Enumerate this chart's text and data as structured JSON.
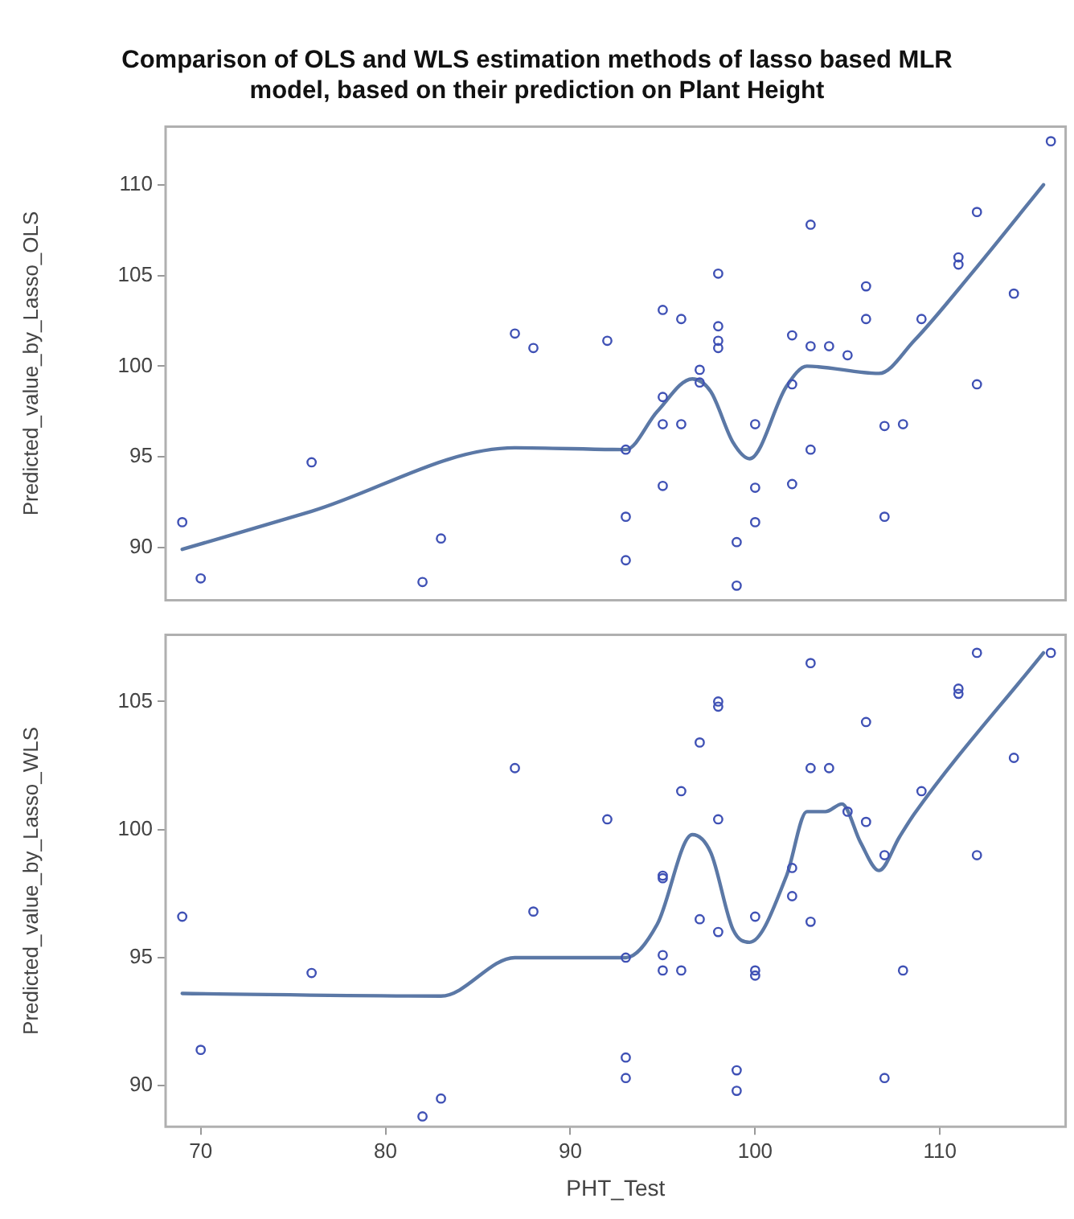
{
  "chart_data": [
    {
      "type": "scatter",
      "title": "Comparison of OLS and WLS estimation methods of lasso based MLR model, based on their prediction on Plant Height",
      "ylabel": "Predicted_value_by_Lasso_OLS",
      "xlim": [
        68.1,
        116.8
      ],
      "xticks": [
        70,
        80,
        90,
        100,
        110
      ],
      "ylim": [
        87.1,
        113.2
      ],
      "yticks": [
        90,
        95,
        100,
        105,
        110
      ],
      "tick_labels": "y",
      "grid": false,
      "legend": false,
      "marker": "circle",
      "series": [
        {
          "color": "#3f51b5",
          "x": [
            69,
            70,
            76,
            82,
            83,
            87,
            88,
            92,
            93,
            93,
            93,
            95,
            95,
            95,
            95,
            96,
            96,
            97,
            97,
            98,
            98,
            98,
            98,
            99,
            99,
            100,
            100,
            100,
            102,
            102,
            102,
            103,
            103,
            103,
            104,
            105,
            106,
            106,
            107,
            107,
            108,
            109,
            111,
            111,
            112,
            112,
            114,
            116
          ],
          "values": [
            91.4,
            88.3,
            94.7,
            88.1,
            90.5,
            101.8,
            101.0,
            101.4,
            95.4,
            91.7,
            89.3,
            103.1,
            98.3,
            96.8,
            93.4,
            102.6,
            96.8,
            99.8,
            99.1,
            105.1,
            102.2,
            101.4,
            101.0,
            90.3,
            87.9,
            96.8,
            93.3,
            91.4,
            101.7,
            99.0,
            93.5,
            107.8,
            101.1,
            95.4,
            101.1,
            100.6,
            104.4,
            102.6,
            96.7,
            91.7,
            96.8,
            102.6,
            106.0,
            105.6,
            108.5,
            99.0,
            104.0,
            112.4
          ]
        },
        {
          "type": "line",
          "color": "#5b78a6",
          "marker": "none",
          "x": [
            69,
            76,
            87,
            93,
            94.7,
            96.6,
            97.6,
            98.8,
            99.7,
            101.7,
            102.8,
            106.7,
            108.6,
            111.7,
            115.6
          ],
          "values": [
            89.9,
            92.0,
            95.5,
            95.4,
            97.5,
            99.3,
            98.6,
            95.8,
            94.9,
            98.9,
            100.0,
            99.6,
            101.4,
            105.1,
            110.0
          ]
        }
      ]
    },
    {
      "type": "scatter",
      "xlabel": "PHT_Test",
      "ylabel": "Predicted_value_by_Lasso_WLS",
      "xlim": [
        68.1,
        116.8
      ],
      "xticks": [
        70,
        80,
        90,
        100,
        110
      ],
      "ylim": [
        88.4,
        107.6
      ],
      "yticks": [
        90,
        95,
        100,
        105
      ],
      "grid": false,
      "legend": false,
      "marker": "circle",
      "series": [
        {
          "color": "#3f51b5",
          "x": [
            69,
            70,
            76,
            82,
            83,
            87,
            88,
            92,
            93,
            93,
            93,
            95,
            95,
            95,
            95,
            96,
            96,
            97,
            97,
            98,
            98,
            98,
            98,
            99,
            99,
            100,
            100,
            100,
            102,
            102,
            103,
            103,
            103,
            104,
            105,
            106,
            106,
            107,
            107,
            108,
            109,
            111,
            111,
            112,
            112,
            114,
            116
          ],
          "values": [
            96.6,
            91.4,
            94.4,
            88.8,
            89.5,
            102.4,
            96.8,
            100.4,
            95.0,
            91.1,
            90.3,
            95.1,
            94.5,
            98.2,
            98.1,
            94.5,
            101.5,
            103.4,
            96.5,
            105.0,
            104.8,
            100.4,
            96.0,
            90.6,
            89.8,
            96.6,
            94.5,
            94.3,
            98.5,
            97.4,
            106.5,
            102.4,
            96.4,
            102.4,
            100.7,
            104.2,
            100.3,
            99.0,
            90.3,
            94.5,
            101.5,
            105.5,
            105.3,
            106.9,
            99.0,
            102.8,
            106.9
          ]
        },
        {
          "type": "line",
          "color": "#5b78a6",
          "marker": "none",
          "x": [
            69,
            83,
            87,
            93,
            94.7,
            96.6,
            97.6,
            98.8,
            99.7,
            101.7,
            102.8,
            103.8,
            104.7,
            105.7,
            106.7,
            107.8,
            108.6,
            115.6
          ],
          "values": [
            93.6,
            93.5,
            95.0,
            95.0,
            96.3,
            99.8,
            99.1,
            96.1,
            95.6,
            98.2,
            100.7,
            100.7,
            101.0,
            99.5,
            98.4,
            99.7,
            100.6,
            106.9
          ]
        }
      ]
    }
  ]
}
